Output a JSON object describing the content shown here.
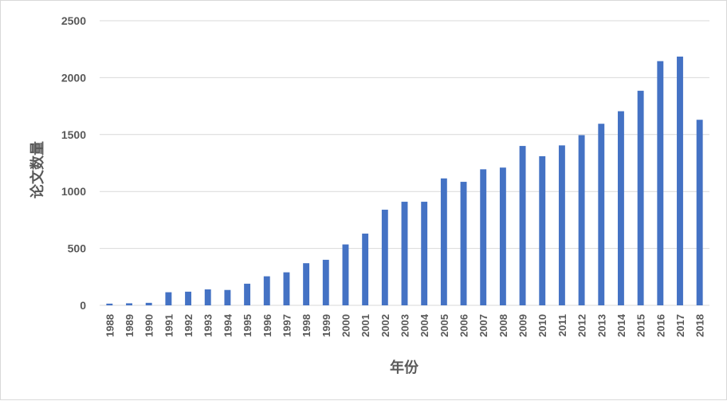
{
  "chart_data": {
    "type": "bar",
    "xlabel": "年份",
    "ylabel": "论文数量",
    "ylim": [
      0,
      2500
    ],
    "yticks": [
      0,
      500,
      1000,
      1500,
      2000,
      2500
    ],
    "grid": true,
    "legend": "none",
    "bar_color": "#4472c4",
    "gridline_color": "#d9d9d9",
    "categories": [
      "1988",
      "1989",
      "1990",
      "1991",
      "1992",
      "1993",
      "1994",
      "1995",
      "1996",
      "1997",
      "1998",
      "1999",
      "2000",
      "2001",
      "2002",
      "2003",
      "2004",
      "2005",
      "2006",
      "2007",
      "2008",
      "2009",
      "2010",
      "2011",
      "2012",
      "2013",
      "2014",
      "2015",
      "2016",
      "2017",
      "2018"
    ],
    "values": [
      15,
      18,
      22,
      115,
      120,
      140,
      135,
      190,
      255,
      290,
      370,
      400,
      535,
      630,
      840,
      910,
      910,
      1115,
      1085,
      1195,
      1210,
      1400,
      1310,
      1405,
      1495,
      1595,
      1705,
      1885,
      2145,
      2185,
      1630
    ]
  }
}
